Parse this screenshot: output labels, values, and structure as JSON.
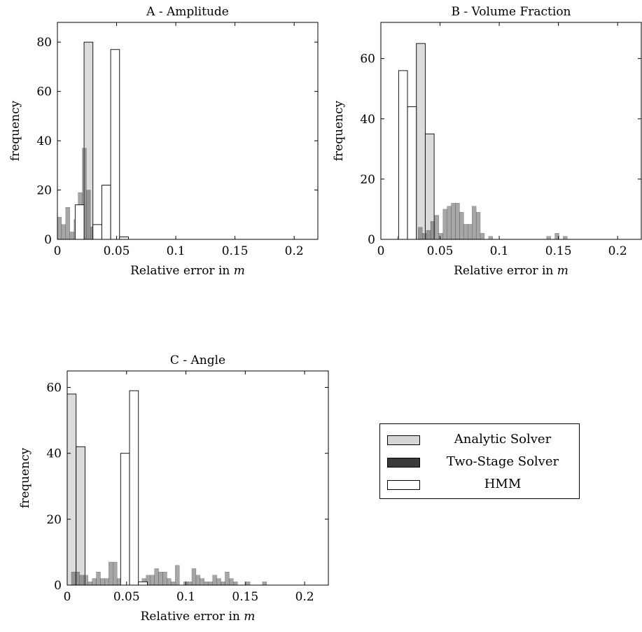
{
  "chart_data": [
    {
      "type": "bar",
      "title": "A - Amplitude",
      "xlabel": "Relative error in m",
      "ylabel": "frequency",
      "xlim": [
        0,
        0.22
      ],
      "ylim": [
        0,
        88
      ],
      "xticks": [
        "0",
        "0.05",
        "0.1",
        "0.15",
        "0.2"
      ],
      "yticks": [
        "0",
        "20",
        "40",
        "60",
        "80"
      ],
      "series": [
        {
          "name": "Analytic Solver",
          "bin_width": 0.0075,
          "bins": [
            [
              0.0225,
              80
            ]
          ]
        },
        {
          "name": "Two-Stage Solver",
          "bin_width": 0.0035,
          "bins": [
            [
              0.0,
              9
            ],
            [
              0.0035,
              6
            ],
            [
              0.007,
              13
            ],
            [
              0.0105,
              3
            ],
            [
              0.014,
              8
            ],
            [
              0.0175,
              19
            ],
            [
              0.021,
              37
            ],
            [
              0.0245,
              20
            ],
            [
              0.028,
              5
            ],
            [
              0.0315,
              3
            ],
            [
              0.035,
              1
            ]
          ]
        },
        {
          "name": "HMM",
          "bin_width": 0.0075,
          "bins": [
            [
              0.015,
              14
            ],
            [
              0.03,
              6
            ],
            [
              0.0375,
              22
            ],
            [
              0.045,
              77
            ],
            [
              0.0525,
              1
            ]
          ]
        }
      ]
    },
    {
      "type": "bar",
      "title": "B - Volume Fraction",
      "xlabel": "Relative error in m",
      "ylabel": "frequency",
      "xlim": [
        0,
        0.22
      ],
      "ylim": [
        0,
        72
      ],
      "xticks": [
        "0",
        "0.05",
        "0.1",
        "0.15",
        "0.2"
      ],
      "yticks": [
        "0",
        "20",
        "40",
        "60"
      ],
      "series": [
        {
          "name": "Analytic Solver",
          "bin_width": 0.0075,
          "bins": [
            [
              0.03,
              65
            ],
            [
              0.0375,
              35
            ]
          ]
        },
        {
          "name": "Two-Stage Solver",
          "bin_width": 0.0035,
          "bins": [
            [
              0.014,
              1
            ],
            [
              0.0175,
              1
            ],
            [
              0.0245,
              2
            ],
            [
              0.0315,
              4
            ],
            [
              0.035,
              2
            ],
            [
              0.0385,
              3
            ],
            [
              0.042,
              6
            ],
            [
              0.0455,
              8
            ],
            [
              0.049,
              2
            ],
            [
              0.0525,
              10
            ],
            [
              0.056,
              11
            ],
            [
              0.0595,
              12
            ],
            [
              0.063,
              12
            ],
            [
              0.0665,
              9
            ],
            [
              0.07,
              5
            ],
            [
              0.0735,
              5
            ],
            [
              0.077,
              11
            ],
            [
              0.0805,
              9
            ],
            [
              0.084,
              2
            ],
            [
              0.091,
              1
            ],
            [
              0.14,
              1
            ],
            [
              0.147,
              2
            ],
            [
              0.154,
              1
            ]
          ]
        },
        {
          "name": "HMM",
          "bin_width": 0.0075,
          "bins": [
            [
              0.015,
              56
            ],
            [
              0.0225,
              44
            ]
          ]
        }
      ]
    },
    {
      "type": "bar",
      "title": "C - Angle",
      "xlabel": "Relative error in m",
      "ylabel": "frequency",
      "xlim": [
        0,
        0.22
      ],
      "ylim": [
        0,
        65
      ],
      "xticks": [
        "0",
        "0.05",
        "0.1",
        "0.15",
        "0.2"
      ],
      "yticks": [
        "0",
        "20",
        "40",
        "60"
      ],
      "series": [
        {
          "name": "Analytic Solver",
          "bin_width": 0.0075,
          "bins": [
            [
              0.0,
              58
            ],
            [
              0.0075,
              42
            ]
          ]
        },
        {
          "name": "Two-Stage Solver",
          "bin_width": 0.0035,
          "bins": [
            [
              0.0035,
              4
            ],
            [
              0.007,
              4
            ],
            [
              0.0105,
              3
            ],
            [
              0.014,
              3
            ],
            [
              0.0175,
              1
            ],
            [
              0.021,
              2
            ],
            [
              0.0245,
              4
            ],
            [
              0.028,
              2
            ],
            [
              0.0315,
              2
            ],
            [
              0.035,
              7
            ],
            [
              0.0385,
              7
            ],
            [
              0.042,
              2
            ],
            [
              0.0455,
              2
            ],
            [
              0.049,
              5
            ],
            [
              0.0525,
              3
            ],
            [
              0.056,
              3
            ],
            [
              0.0595,
              1
            ],
            [
              0.063,
              2
            ],
            [
              0.0665,
              3
            ],
            [
              0.07,
              3
            ],
            [
              0.0735,
              5
            ],
            [
              0.077,
              4
            ],
            [
              0.0805,
              4
            ],
            [
              0.084,
              2
            ],
            [
              0.0875,
              1
            ],
            [
              0.091,
              6
            ],
            [
              0.098,
              1
            ],
            [
              0.1015,
              1
            ],
            [
              0.105,
              5
            ],
            [
              0.1085,
              3
            ],
            [
              0.112,
              2
            ],
            [
              0.1155,
              1
            ],
            [
              0.119,
              1
            ],
            [
              0.1225,
              3
            ],
            [
              0.126,
              2
            ],
            [
              0.1295,
              1
            ],
            [
              0.133,
              4
            ],
            [
              0.1365,
              2
            ],
            [
              0.14,
              1
            ],
            [
              0.1505,
              1
            ],
            [
              0.1645,
              1
            ]
          ]
        },
        {
          "name": "HMM",
          "bin_width": 0.0075,
          "bins": [
            [
              0.045,
              40
            ],
            [
              0.0525,
              59
            ],
            [
              0.06,
              1
            ]
          ]
        }
      ]
    }
  ],
  "legend": {
    "placement": "right of C",
    "items": [
      {
        "label": "Analytic Solver",
        "color": "#d6d6d6"
      },
      {
        "label": "Two-Stage Solver",
        "color": "#3a3a3a"
      },
      {
        "label": "HMM",
        "color": "#ffffff"
      }
    ]
  },
  "style": {
    "analytic_fill": "#d6d6d6",
    "twostage_fill": "#3a3a3a",
    "hmm_fill": "#ffffff"
  }
}
